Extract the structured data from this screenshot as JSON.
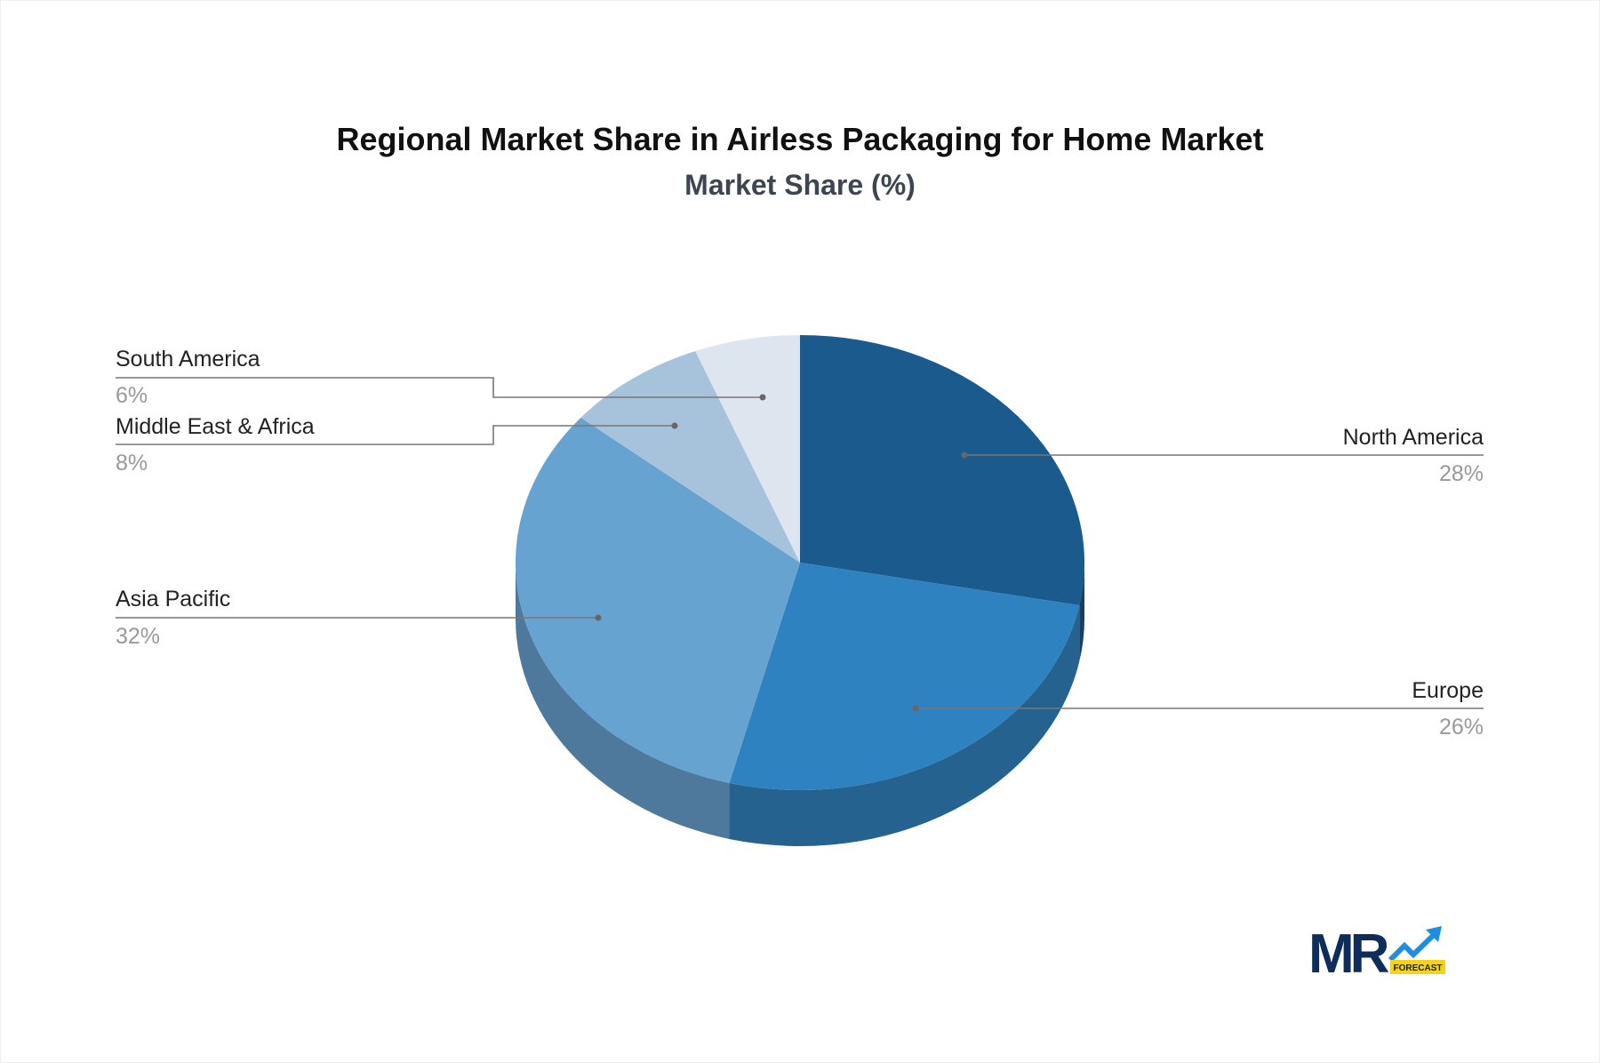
{
  "chart_data": {
    "type": "pie",
    "style": "3d",
    "title": "Regional Market Share in Airless Packaging for Home Market",
    "subtitle": "Market Share (%)",
    "slices": [
      {
        "label": "North America",
        "value": 28,
        "display": "28%",
        "color": "#1b5a8c",
        "side": "#173f62"
      },
      {
        "label": "Europe",
        "value": 26,
        "display": "26%",
        "color": "#2e82c0",
        "side": "#25628f"
      },
      {
        "label": "Asia Pacific",
        "value": 32,
        "display": "32%",
        "color": "#67a3d1",
        "side": "#4e799d"
      },
      {
        "label": "Middle East & Africa",
        "value": 8,
        "display": "8%",
        "color": "#a7c3dc",
        "side": "#7f96ab"
      },
      {
        "label": "South America",
        "value": 6,
        "display": "6%",
        "color": "#dde6ee",
        "side": "#aab3bb"
      }
    ]
  },
  "logo": {
    "text": "MR",
    "tag": "FORECAST"
  }
}
